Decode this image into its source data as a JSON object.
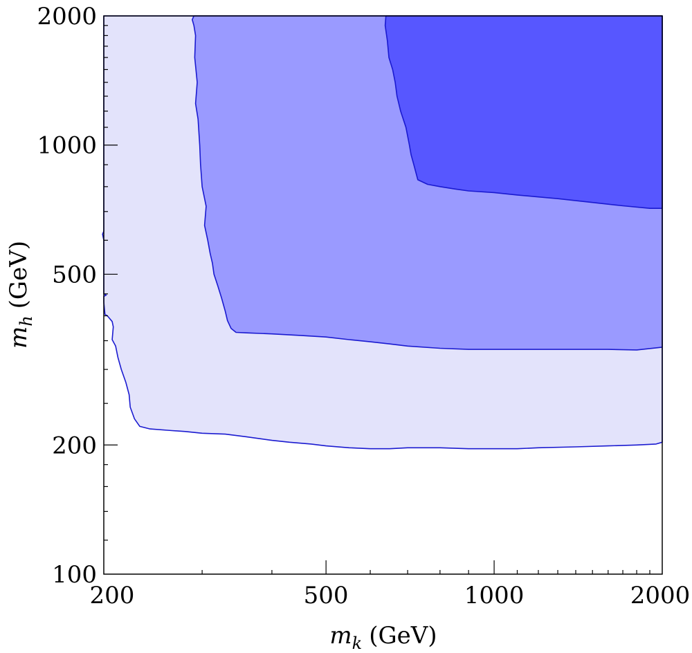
{
  "chart_data": {
    "type": "area",
    "title": "",
    "xlabel": "m_k (GeV)",
    "ylabel": "m_h (GeV)",
    "xlabel_parts": {
      "symbol": "m",
      "subscript": "k",
      "unit": "(GeV)"
    },
    "ylabel_parts": {
      "symbol": "m",
      "subscript": "h",
      "unit": "(GeV)"
    },
    "xscale": "log",
    "yscale": "log",
    "xlim": [
      200,
      2000
    ],
    "ylim": [
      100,
      2000
    ],
    "x_ticks": [
      200,
      500,
      1000,
      2000
    ],
    "x_tick_labels": [
      "200",
      "500",
      "1000",
      "2000"
    ],
    "y_ticks": [
      100,
      200,
      500,
      1000,
      2000
    ],
    "y_tick_labels": [
      "100",
      "200",
      "500",
      "1000",
      "2000"
    ],
    "grid": false,
    "legend": "none",
    "regions": [
      {
        "fill": "#e3e3fb",
        "stroke": "#1a1ad0",
        "boundary": [
          [
            200,
            450
          ],
          [
            202,
            447
          ],
          [
            200,
            444
          ],
          [
            200,
            430
          ],
          [
            201,
            403
          ],
          [
            203,
            400
          ],
          [
            207,
            388
          ],
          [
            208,
            377
          ],
          [
            207,
            352
          ],
          [
            210,
            340
          ],
          [
            212,
            320
          ],
          [
            215,
            300
          ],
          [
            219,
            280
          ],
          [
            222,
            262
          ],
          [
            223,
            245
          ],
          [
            227,
            230
          ],
          [
            232,
            221
          ],
          [
            242,
            218
          ],
          [
            265,
            216
          ],
          [
            280,
            215
          ],
          [
            300,
            213
          ],
          [
            330,
            212
          ],
          [
            360,
            209
          ],
          [
            400,
            205
          ],
          [
            430,
            203
          ],
          [
            470,
            201
          ],
          [
            500,
            199
          ],
          [
            550,
            197
          ],
          [
            600,
            196
          ],
          [
            650,
            196
          ],
          [
            700,
            197
          ],
          [
            800,
            197
          ],
          [
            900,
            196
          ],
          [
            1000,
            196
          ],
          [
            1100,
            196
          ],
          [
            1200,
            197
          ],
          [
            1400,
            198
          ],
          [
            1600,
            199
          ],
          [
            1800,
            200
          ],
          [
            1950,
            201
          ],
          [
            2000,
            203
          ],
          [
            2000,
            2000
          ],
          [
            200,
            2000
          ],
          [
            200,
            630
          ],
          [
            199,
            620
          ],
          [
            200,
            600
          ]
        ]
      },
      {
        "fill": "#9a9aff",
        "stroke": "#1a1ad0",
        "boundary": [
          [
            290,
            2000
          ],
          [
            288,
            1960
          ],
          [
            290,
            1900
          ],
          [
            292,
            1800
          ],
          [
            291,
            1600
          ],
          [
            294,
            1400
          ],
          [
            292,
            1250
          ],
          [
            295,
            1150
          ],
          [
            297,
            1000
          ],
          [
            298,
            900
          ],
          [
            300,
            800
          ],
          [
            305,
            720
          ],
          [
            303,
            650
          ],
          [
            307,
            600
          ],
          [
            310,
            560
          ],
          [
            313,
            530
          ],
          [
            315,
            500
          ],
          [
            320,
            470
          ],
          [
            325,
            440
          ],
          [
            330,
            410
          ],
          [
            333,
            390
          ],
          [
            338,
            374
          ],
          [
            345,
            366
          ],
          [
            360,
            365
          ],
          [
            400,
            363
          ],
          [
            450,
            360
          ],
          [
            500,
            357
          ],
          [
            550,
            352
          ],
          [
            600,
            348
          ],
          [
            650,
            344
          ],
          [
            700,
            340
          ],
          [
            800,
            336
          ],
          [
            900,
            334
          ],
          [
            1000,
            334
          ],
          [
            1200,
            334
          ],
          [
            1400,
            334
          ],
          [
            1600,
            334
          ],
          [
            1800,
            333
          ],
          [
            2000,
            338
          ],
          [
            2000,
            2000
          ]
        ]
      },
      {
        "fill": "#5757ff",
        "stroke": "#1a1ad0",
        "boundary": [
          [
            640,
            2000
          ],
          [
            638,
            1900
          ],
          [
            644,
            1750
          ],
          [
            648,
            1600
          ],
          [
            658,
            1500
          ],
          [
            665,
            1400
          ],
          [
            670,
            1300
          ],
          [
            680,
            1200
          ],
          [
            695,
            1100
          ],
          [
            705,
            1000
          ],
          [
            710,
            950
          ],
          [
            718,
            900
          ],
          [
            730,
            830
          ],
          [
            760,
            810
          ],
          [
            800,
            800
          ],
          [
            850,
            790
          ],
          [
            900,
            782
          ],
          [
            1000,
            775
          ],
          [
            1100,
            765
          ],
          [
            1200,
            757
          ],
          [
            1300,
            750
          ],
          [
            1500,
            735
          ],
          [
            1700,
            722
          ],
          [
            1900,
            712
          ],
          [
            2000,
            712
          ],
          [
            2000,
            2000
          ]
        ]
      }
    ]
  }
}
